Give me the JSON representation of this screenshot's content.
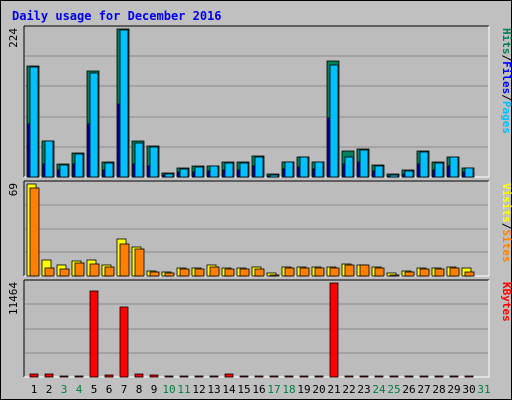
{
  "title": "Daily usage for December 2016",
  "colors": {
    "background": "#c0c0c0",
    "panel": "#bcbcbc",
    "title": "#0000ee",
    "hits": "#00805c",
    "files": "#0000ff",
    "pages": "#00c0ff",
    "visits": "#ffff00",
    "sites": "#ff8000",
    "kbytes": "#ff0000",
    "weekend_label": "#008040"
  },
  "chart_data": {
    "type": "bar",
    "categories": [
      "1",
      "2",
      "3",
      "4",
      "5",
      "6",
      "7",
      "8",
      "9",
      "10",
      "11",
      "12",
      "13",
      "14",
      "15",
      "16",
      "17",
      "18",
      "19",
      "20",
      "21",
      "22",
      "23",
      "24",
      "25",
      "26",
      "27",
      "28",
      "29",
      "30",
      "31"
    ],
    "weekend_days": [
      "3",
      "4",
      "10",
      "11",
      "17",
      "18",
      "24",
      "25",
      "31"
    ],
    "panels": [
      {
        "name": "hits-files-pages",
        "max_label": "224",
        "ymax": 224,
        "legend": [
          {
            "text": "Pages",
            "color": "#00c0ff"
          },
          {
            "text": "/",
            "color": "#000000"
          },
          {
            "text": "Files",
            "color": "#0000ff"
          },
          {
            "text": "/",
            "color": "#000000"
          },
          {
            "text": "Hits",
            "color": "#00805c"
          }
        ],
        "series": [
          {
            "name": "Hits",
            "values": [
              168,
              55,
              19,
              36,
              160,
              22,
              224,
              55,
              47,
              6,
              13,
              16,
              17,
              22,
              22,
              32,
              4,
              23,
              31,
              23,
              175,
              39,
              43,
              18,
              4,
              10,
              39,
              22,
              31,
              14,
              0
            ]
          },
          {
            "name": "Files",
            "values": [
              80,
              20,
              10,
              20,
              80,
              10,
              110,
              20,
              17,
              3,
              7,
              8,
              9,
              10,
              10,
              16,
              2,
              12,
              15,
              12,
              90,
              20,
              23,
              9,
              2,
              5,
              20,
              11,
              16,
              7,
              0
            ]
          },
          {
            "name": "Pages",
            "values": [
              167,
              54,
              18,
              35,
              158,
              21,
              222,
              51,
              45,
              5,
              12,
              15,
              16,
              21,
              21,
              31,
              3,
              22,
              30,
              22,
              170,
              30,
              41,
              17,
              3,
              9,
              38,
              21,
              30,
              13,
              0
            ]
          }
        ]
      },
      {
        "name": "visits-sites",
        "max_label": "69",
        "ymax": 69,
        "legend": [
          {
            "text": "Sites",
            "color": "#ff8000"
          },
          {
            "text": "/",
            "color": "#000000"
          },
          {
            "text": "Visits",
            "color": "#ffff00"
          }
        ],
        "series": [
          {
            "name": "Visits",
            "values": [
              69,
              12,
              8,
              11,
              12,
              8,
              28,
              22,
              4,
              3,
              6,
              6,
              8,
              6,
              6,
              7,
              2,
              7,
              7,
              7,
              7,
              9,
              8,
              7,
              2,
              4,
              6,
              6,
              7,
              6,
              0
            ]
          },
          {
            "name": "Sites",
            "values": [
              66,
              6,
              5,
              10,
              9,
              7,
              24,
              20,
              3,
              2,
              5,
              5,
              7,
              5,
              5,
              5,
              1,
              6,
              6,
              6,
              6,
              8,
              8,
              6,
              1,
              3,
              5,
              5,
              6,
              3,
              0
            ]
          }
        ]
      },
      {
        "name": "kbytes",
        "max_label": "11464",
        "ymax": 11464,
        "legend": [
          {
            "text": "KBytes",
            "color": "#ff0000"
          }
        ],
        "series": [
          {
            "name": "KBytes",
            "values": [
              320,
              360,
              150,
              150,
              10500,
              200,
              8500,
              380,
              270,
              120,
              150,
              150,
              150,
              420,
              120,
              120,
              120,
              120,
              120,
              120,
              11464,
              120,
              120,
              120,
              120,
              120,
              120,
              120,
              120,
              120,
              0
            ]
          }
        ]
      }
    ]
  }
}
